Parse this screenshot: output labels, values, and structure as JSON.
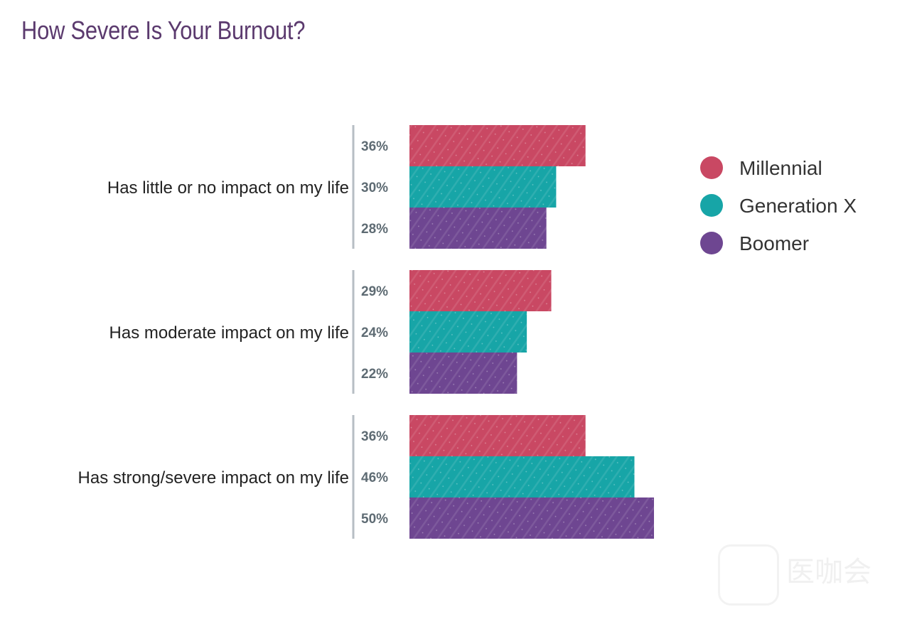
{
  "title": "How Severe Is Your Burnout?",
  "chart_data": {
    "type": "bar",
    "orientation": "horizontal",
    "categories": [
      "Has little or no impact on my life",
      "Has moderate impact on my life",
      "Has strong/severe impact on my life"
    ],
    "series": [
      {
        "name": "Millennial",
        "color": "#c94863",
        "values": [
          36,
          29,
          36
        ],
        "labels": [
          "36%",
          "29%",
          "36%"
        ]
      },
      {
        "name": "Generation X",
        "color": "#17a5a7",
        "values": [
          30,
          24,
          46
        ],
        "labels": [
          "30%",
          "24%",
          "46%"
        ]
      },
      {
        "name": "Boomer",
        "color": "#6e4691",
        "values": [
          28,
          22,
          50
        ],
        "labels": [
          "28%",
          "22%",
          "50%"
        ]
      }
    ],
    "value_unit": "%",
    "xlim": [
      0,
      50
    ],
    "grid": false,
    "legend_position": "right"
  },
  "watermark": {
    "text": "医咖会"
  }
}
